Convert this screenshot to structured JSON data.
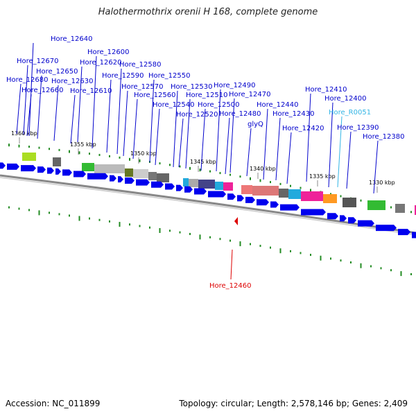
{
  "title": "Halothermothrix orenii H 168, complete genome",
  "footer": {
    "accession": "Accession: NC_011899",
    "info": "Topology: circular; Length: 2,578,146 bp; Genes: 2,409"
  },
  "kbp_ticks": [
    "1360 kbp",
    "1355 kbp",
    "1350 kbp",
    "1345 kbp",
    "1340 kbp",
    "1335 kbp",
    "1330 kbp"
  ],
  "gene_labels": [
    {
      "text": "Hore_12640",
      "color": "#0000cc"
    },
    {
      "text": "Hore_12600",
      "color": "#0000cc"
    },
    {
      "text": "Hore_12670",
      "color": "#0000cc"
    },
    {
      "text": "Hore_12620",
      "color": "#0000cc"
    },
    {
      "text": "Hore_12650",
      "color": "#0000cc"
    },
    {
      "text": "Hore_12580",
      "color": "#0000cc"
    },
    {
      "text": "Hore_12680",
      "color": "#0000cc"
    },
    {
      "text": "Hore_12630",
      "color": "#0000cc"
    },
    {
      "text": "Hore_12590",
      "color": "#0000cc"
    },
    {
      "text": "Hore_12550",
      "color": "#0000cc"
    },
    {
      "text": "Hore_12660",
      "color": "#0000cc"
    },
    {
      "text": "Hore_12610",
      "color": "#0000cc"
    },
    {
      "text": "Hore_12570",
      "color": "#0000cc"
    },
    {
      "text": "Hore_12530",
      "color": "#0000cc"
    },
    {
      "text": "Hore_12490",
      "color": "#0000cc"
    },
    {
      "text": "Hore_12410",
      "color": "#0000cc"
    },
    {
      "text": "Hore_12560",
      "color": "#0000cc"
    },
    {
      "text": "Hore_12510",
      "color": "#0000cc"
    },
    {
      "text": "Hore_12470",
      "color": "#0000cc"
    },
    {
      "text": "Hore_12400",
      "color": "#0000cc"
    },
    {
      "text": "Hore_12540",
      "color": "#0000cc"
    },
    {
      "text": "Hore_12500",
      "color": "#0000cc"
    },
    {
      "text": "Hore_12440",
      "color": "#0000cc"
    },
    {
      "text": "Hore_R0051",
      "color": "#33b5e5"
    },
    {
      "text": "Hore_12520",
      "color": "#0000cc"
    },
    {
      "text": "Hore_12480",
      "color": "#0000cc"
    },
    {
      "text": "Hore_12430",
      "color": "#0000cc"
    },
    {
      "text": "glyQ",
      "color": "#0000cc"
    },
    {
      "text": "Hore_12420",
      "color": "#0000cc"
    },
    {
      "text": "Hore_12390",
      "color": "#0000cc"
    },
    {
      "text": "Hore_12380",
      "color": "#0000cc"
    },
    {
      "text": "Hore_12460",
      "color": "#dd0000"
    }
  ],
  "colors": {
    "arrow": "#0000ee",
    "track": "#888888",
    "gc_tick": "#228B22",
    "marker": "#dd0000"
  }
}
